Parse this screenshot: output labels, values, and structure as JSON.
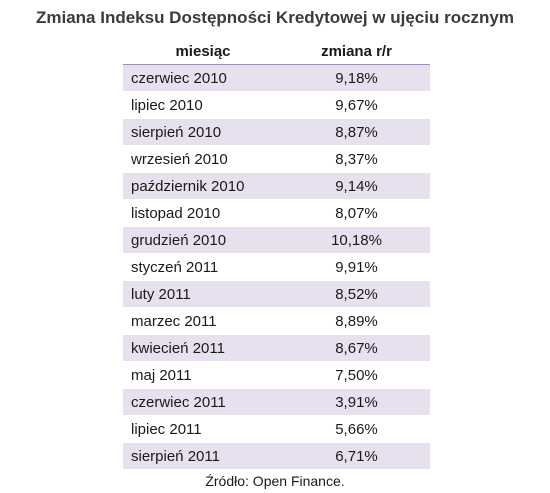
{
  "chart_data": {
    "type": "table",
    "title": "Zmiana Indeksu Dostępności Kredytowej w ujęciu rocznym",
    "columns": [
      "miesiąc",
      "zmiana r/r"
    ],
    "rows": [
      {
        "month": "czerwiec 2010",
        "value": "9,18%"
      },
      {
        "month": "lipiec 2010",
        "value": "9,67%"
      },
      {
        "month": "sierpień 2010",
        "value": "8,87%"
      },
      {
        "month": "wrzesień 2010",
        "value": "8,37%"
      },
      {
        "month": "październik 2010",
        "value": "9,14%"
      },
      {
        "month": "listopad 2010",
        "value": "8,07%"
      },
      {
        "month": "grudzień 2010",
        "value": "10,18%"
      },
      {
        "month": "styczeń 2011",
        "value": "9,91%"
      },
      {
        "month": "luty 2011",
        "value": "8,52%"
      },
      {
        "month": "marzec 2011",
        "value": "8,89%"
      },
      {
        "month": "kwiecień 2011",
        "value": "8,67%"
      },
      {
        "month": "maj 2011",
        "value": "7,50%"
      },
      {
        "month": "czerwiec 2011",
        "value": "3,91%"
      },
      {
        "month": "lipiec 2011",
        "value": "5,66%"
      },
      {
        "month": "sierpień 2011",
        "value": "6,71%"
      }
    ],
    "source": "Źródło: Open Finance.",
    "colors": {
      "stripe": "#e6e0ef",
      "header_rule": "#9a8fb5",
      "title": "#3b3b3b"
    }
  }
}
